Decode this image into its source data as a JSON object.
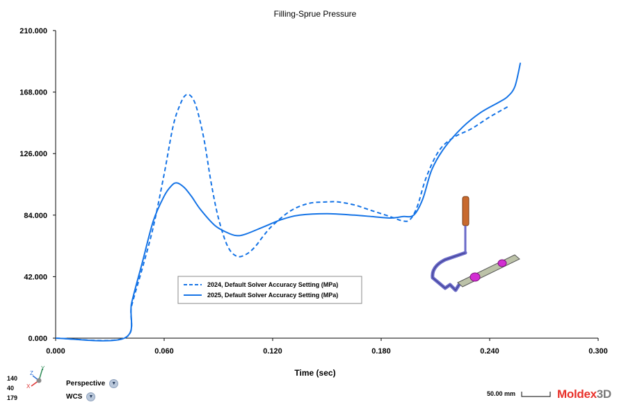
{
  "chart_data": {
    "type": "line",
    "title": "Filling-Sprue Pressure",
    "xlabel": "Time (sec)",
    "ylabel": "",
    "xlim": [
      0.0,
      0.3
    ],
    "ylim": [
      0.0,
      210.0
    ],
    "xticks": [
      "0.000",
      "0.060",
      "0.120",
      "0.180",
      "0.240",
      "0.300"
    ],
    "yticks": [
      "0.000",
      "42.000",
      "84.000",
      "126.000",
      "168.000",
      "210.000"
    ],
    "grid": false,
    "legend_position": "center-left",
    "series": [
      {
        "name": "2024, Default Solver Accuracy Setting (MPa)",
        "style": "dashed",
        "color": "#1473e6",
        "x": [
          0.0,
          0.038,
          0.042,
          0.048,
          0.054,
          0.06,
          0.065,
          0.069,
          0.072,
          0.075,
          0.078,
          0.082,
          0.086,
          0.09,
          0.095,
          0.1,
          0.105,
          0.11,
          0.115,
          0.12,
          0.13,
          0.14,
          0.15,
          0.156,
          0.165,
          0.175,
          0.185,
          0.192,
          0.196,
          0.2,
          0.205,
          0.212,
          0.22,
          0.23,
          0.24,
          0.25
        ],
        "y": [
          0.0,
          0.0,
          22.0,
          48.0,
          76.0,
          112.0,
          145.0,
          160.0,
          166.0,
          165.0,
          157.0,
          136.0,
          106.0,
          82.0,
          63.0,
          56.0,
          57.0,
          62.0,
          70.0,
          77.0,
          87.0,
          92.0,
          93.0,
          93.0,
          91.0,
          87.0,
          83.0,
          80.0,
          81.0,
          90.0,
          110.0,
          128.0,
          137.0,
          143.0,
          151.0,
          158.0
        ]
      },
      {
        "name": "2025, Default Solver Accuracy Setting (MPa)",
        "style": "solid",
        "color": "#1473e6",
        "x": [
          0.0,
          0.038,
          0.042,
          0.048,
          0.054,
          0.06,
          0.064,
          0.067,
          0.071,
          0.075,
          0.08,
          0.088,
          0.095,
          0.1,
          0.105,
          0.115,
          0.125,
          0.135,
          0.15,
          0.165,
          0.175,
          0.185,
          0.192,
          0.198,
          0.203,
          0.208,
          0.215,
          0.225,
          0.235,
          0.245,
          0.25,
          0.254,
          0.257
        ],
        "y": [
          0.0,
          0.0,
          24.0,
          52.0,
          80.0,
          97.0,
          104.0,
          106.0,
          103.0,
          97.0,
          88.0,
          77.0,
          72.0,
          70.0,
          71.0,
          76.0,
          81.0,
          84.0,
          85.0,
          84.0,
          83.0,
          82.0,
          83.0,
          84.0,
          95.0,
          115.0,
          130.0,
          144.0,
          154.0,
          161.0,
          165.0,
          172.0,
          188.0
        ]
      }
    ]
  },
  "overlay": {
    "axis_triad": {
      "x": "X",
      "y": "Y",
      "z": "Z"
    },
    "coords": [
      "140",
      "40",
      "179"
    ],
    "view_mode": "Perspective",
    "coord_system": "WCS",
    "scale_label": "50.00 mm",
    "brand_left": "Moldex",
    "brand_right": "3D",
    "colors": {
      "accent": "#1473e6",
      "brand_red": "#e8312a",
      "sprue": "#c86a2e",
      "runner": "#6a6ac8",
      "gate": "#d22ed2"
    }
  }
}
